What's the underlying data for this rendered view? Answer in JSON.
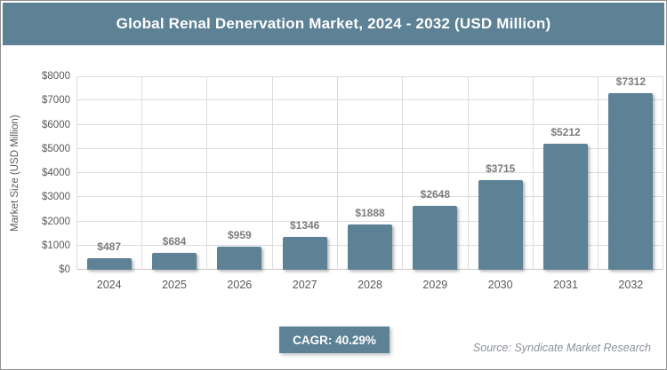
{
  "header": {
    "title": "Global Renal Denervation Market, 2024 - 2032 (USD Million)"
  },
  "chart_data": {
    "type": "bar",
    "title": "Global Renal Denervation Market, 2024 - 2032 (USD Million)",
    "categories": [
      "2024",
      "2025",
      "2026",
      "2027",
      "2028",
      "2029",
      "2030",
      "2031",
      "2032"
    ],
    "values": [
      487,
      684,
      959,
      1346,
      1888,
      2648,
      3715,
      5212,
      7312
    ],
    "value_labels": [
      "$487",
      "$684",
      "$959",
      "$1346",
      "$1888",
      "$2648",
      "$3715",
      "$5212",
      "$7312"
    ],
    "xlabel": "",
    "ylabel": "Market Size (USD Million)",
    "ylim": [
      0,
      8000
    ],
    "ytick_step": 1000,
    "ytick_labels": [
      "$0",
      "$1000",
      "$2000",
      "$3000",
      "$4000",
      "$5000",
      "$6000",
      "$7000",
      "$8000"
    ],
    "grid": true,
    "legend": "none",
    "bar_color": "#5d8195"
  },
  "footer": {
    "cagr_label": "CAGR: 40.29%",
    "source": "Source: Syndicate Market Research"
  },
  "colors": {
    "accent": "#5d8195",
    "grid": "#dcdcdc",
    "axis": "#c6c6c6",
    "tick_text": "#595959",
    "value_label_text": "#7c7c7c",
    "source_text": "#8b9198",
    "frame_border": "#909090"
  }
}
